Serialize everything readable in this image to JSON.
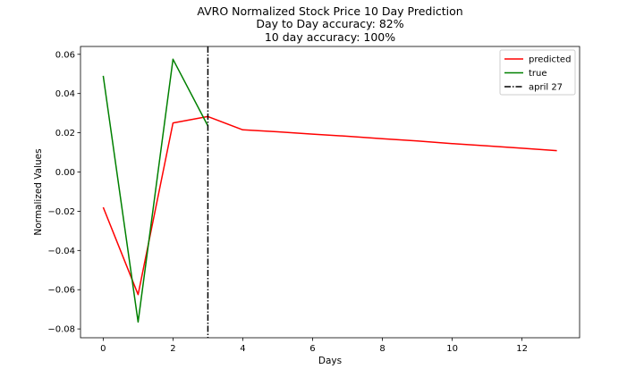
{
  "chart_data": {
    "type": "line",
    "title_lines": [
      "AVRO Normalized Stock Price 10 Day Prediction",
      "Day to Day accuracy: 82%",
      "10 day accuracy: 100%"
    ],
    "xlabel": "Days",
    "ylabel": "Normalized Values",
    "xlim": [
      -0.65,
      13.65
    ],
    "ylim": [
      -0.0845,
      0.064
    ],
    "xticks": [
      0,
      2,
      4,
      6,
      8,
      10,
      12
    ],
    "yticks": [
      -0.08,
      -0.06,
      -0.04,
      -0.02,
      0.0,
      0.02,
      0.04,
      0.06
    ],
    "ytick_labels": [
      "−0.08",
      "−0.06",
      "−0.04",
      "−0.02",
      "0.00",
      "0.02",
      "0.04",
      "0.06"
    ],
    "series": [
      {
        "name": "predicted",
        "color": "#ff0000",
        "x": [
          0,
          1,
          2,
          3,
          4,
          5,
          6,
          7,
          8,
          9,
          10,
          11,
          12,
          13
        ],
        "values": [
          -0.018,
          -0.0625,
          0.025,
          0.0283,
          0.0215,
          0.0205,
          0.0193,
          0.0182,
          0.017,
          0.0158,
          0.0145,
          0.0133,
          0.0121,
          0.0109
        ]
      },
      {
        "name": "true",
        "color": "#008000",
        "x": [
          0,
          1,
          2,
          3
        ],
        "values": [
          0.049,
          -0.0765,
          0.0575,
          0.0235
        ]
      }
    ],
    "vline": {
      "name": "april 27",
      "x": 3,
      "color": "#000000",
      "style": "dash-dot"
    },
    "legend_position": "top-right",
    "grid": false
  }
}
